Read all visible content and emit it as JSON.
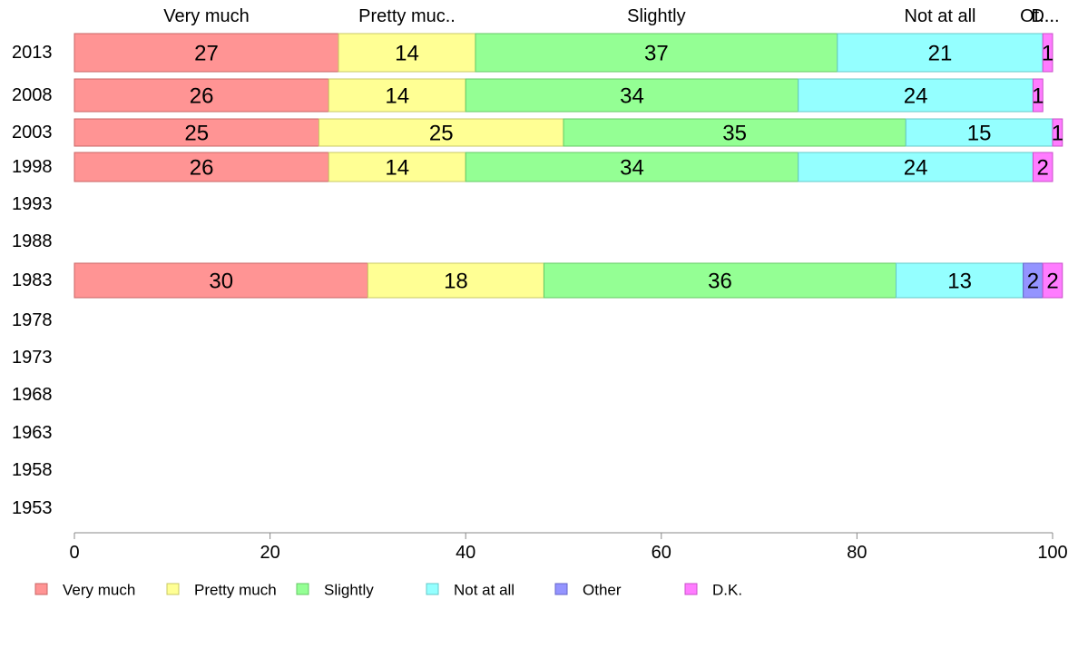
{
  "chart_data": {
    "type": "bar",
    "orientation": "horizontal",
    "stacked": true,
    "categories": [
      "2013",
      "2008",
      "2003",
      "1998",
      "1993",
      "1988",
      "1983",
      "1978",
      "1973",
      "1968",
      "1963",
      "1958",
      "1953"
    ],
    "category_labels": [
      "Very much",
      "Pretty muc..",
      "Slightly",
      "Not at all",
      "Ot...",
      "D..."
    ],
    "series": [
      {
        "name": "Very much",
        "color": "#ff9494",
        "stroke": "#c86464",
        "values": [
          27,
          26,
          25,
          26,
          null,
          null,
          30,
          null,
          null,
          null,
          null,
          null,
          null
        ]
      },
      {
        "name": "Pretty much",
        "color": "#ffff94",
        "stroke": "#c8c864",
        "values": [
          14,
          14,
          25,
          14,
          null,
          null,
          18,
          null,
          null,
          null,
          null,
          null,
          null
        ]
      },
      {
        "name": "Slightly",
        "color": "#94ff94",
        "stroke": "#64c864",
        "values": [
          37,
          34,
          35,
          34,
          null,
          null,
          36,
          null,
          null,
          null,
          null,
          null,
          null
        ]
      },
      {
        "name": "Not at all",
        "color": "#94ffff",
        "stroke": "#64c8c8",
        "values": [
          21,
          24,
          15,
          24,
          null,
          null,
          13,
          null,
          null,
          null,
          null,
          null,
          null
        ]
      },
      {
        "name": "Other",
        "color": "#9494ff",
        "stroke": "#6464c8",
        "values": [
          0,
          0,
          0,
          0,
          null,
          null,
          2,
          null,
          null,
          null,
          null,
          null,
          null
        ]
      },
      {
        "name": "D.K.",
        "color": "#ff7cff",
        "stroke": "#c850c8",
        "values": [
          1,
          1,
          1,
          2,
          null,
          null,
          2,
          null,
          null,
          null,
          null,
          null,
          null
        ]
      }
    ],
    "xlim": [
      0,
      100
    ],
    "xticks": [
      0,
      20,
      40,
      60,
      80,
      100
    ],
    "grid": false,
    "legend_position": "bottom"
  }
}
